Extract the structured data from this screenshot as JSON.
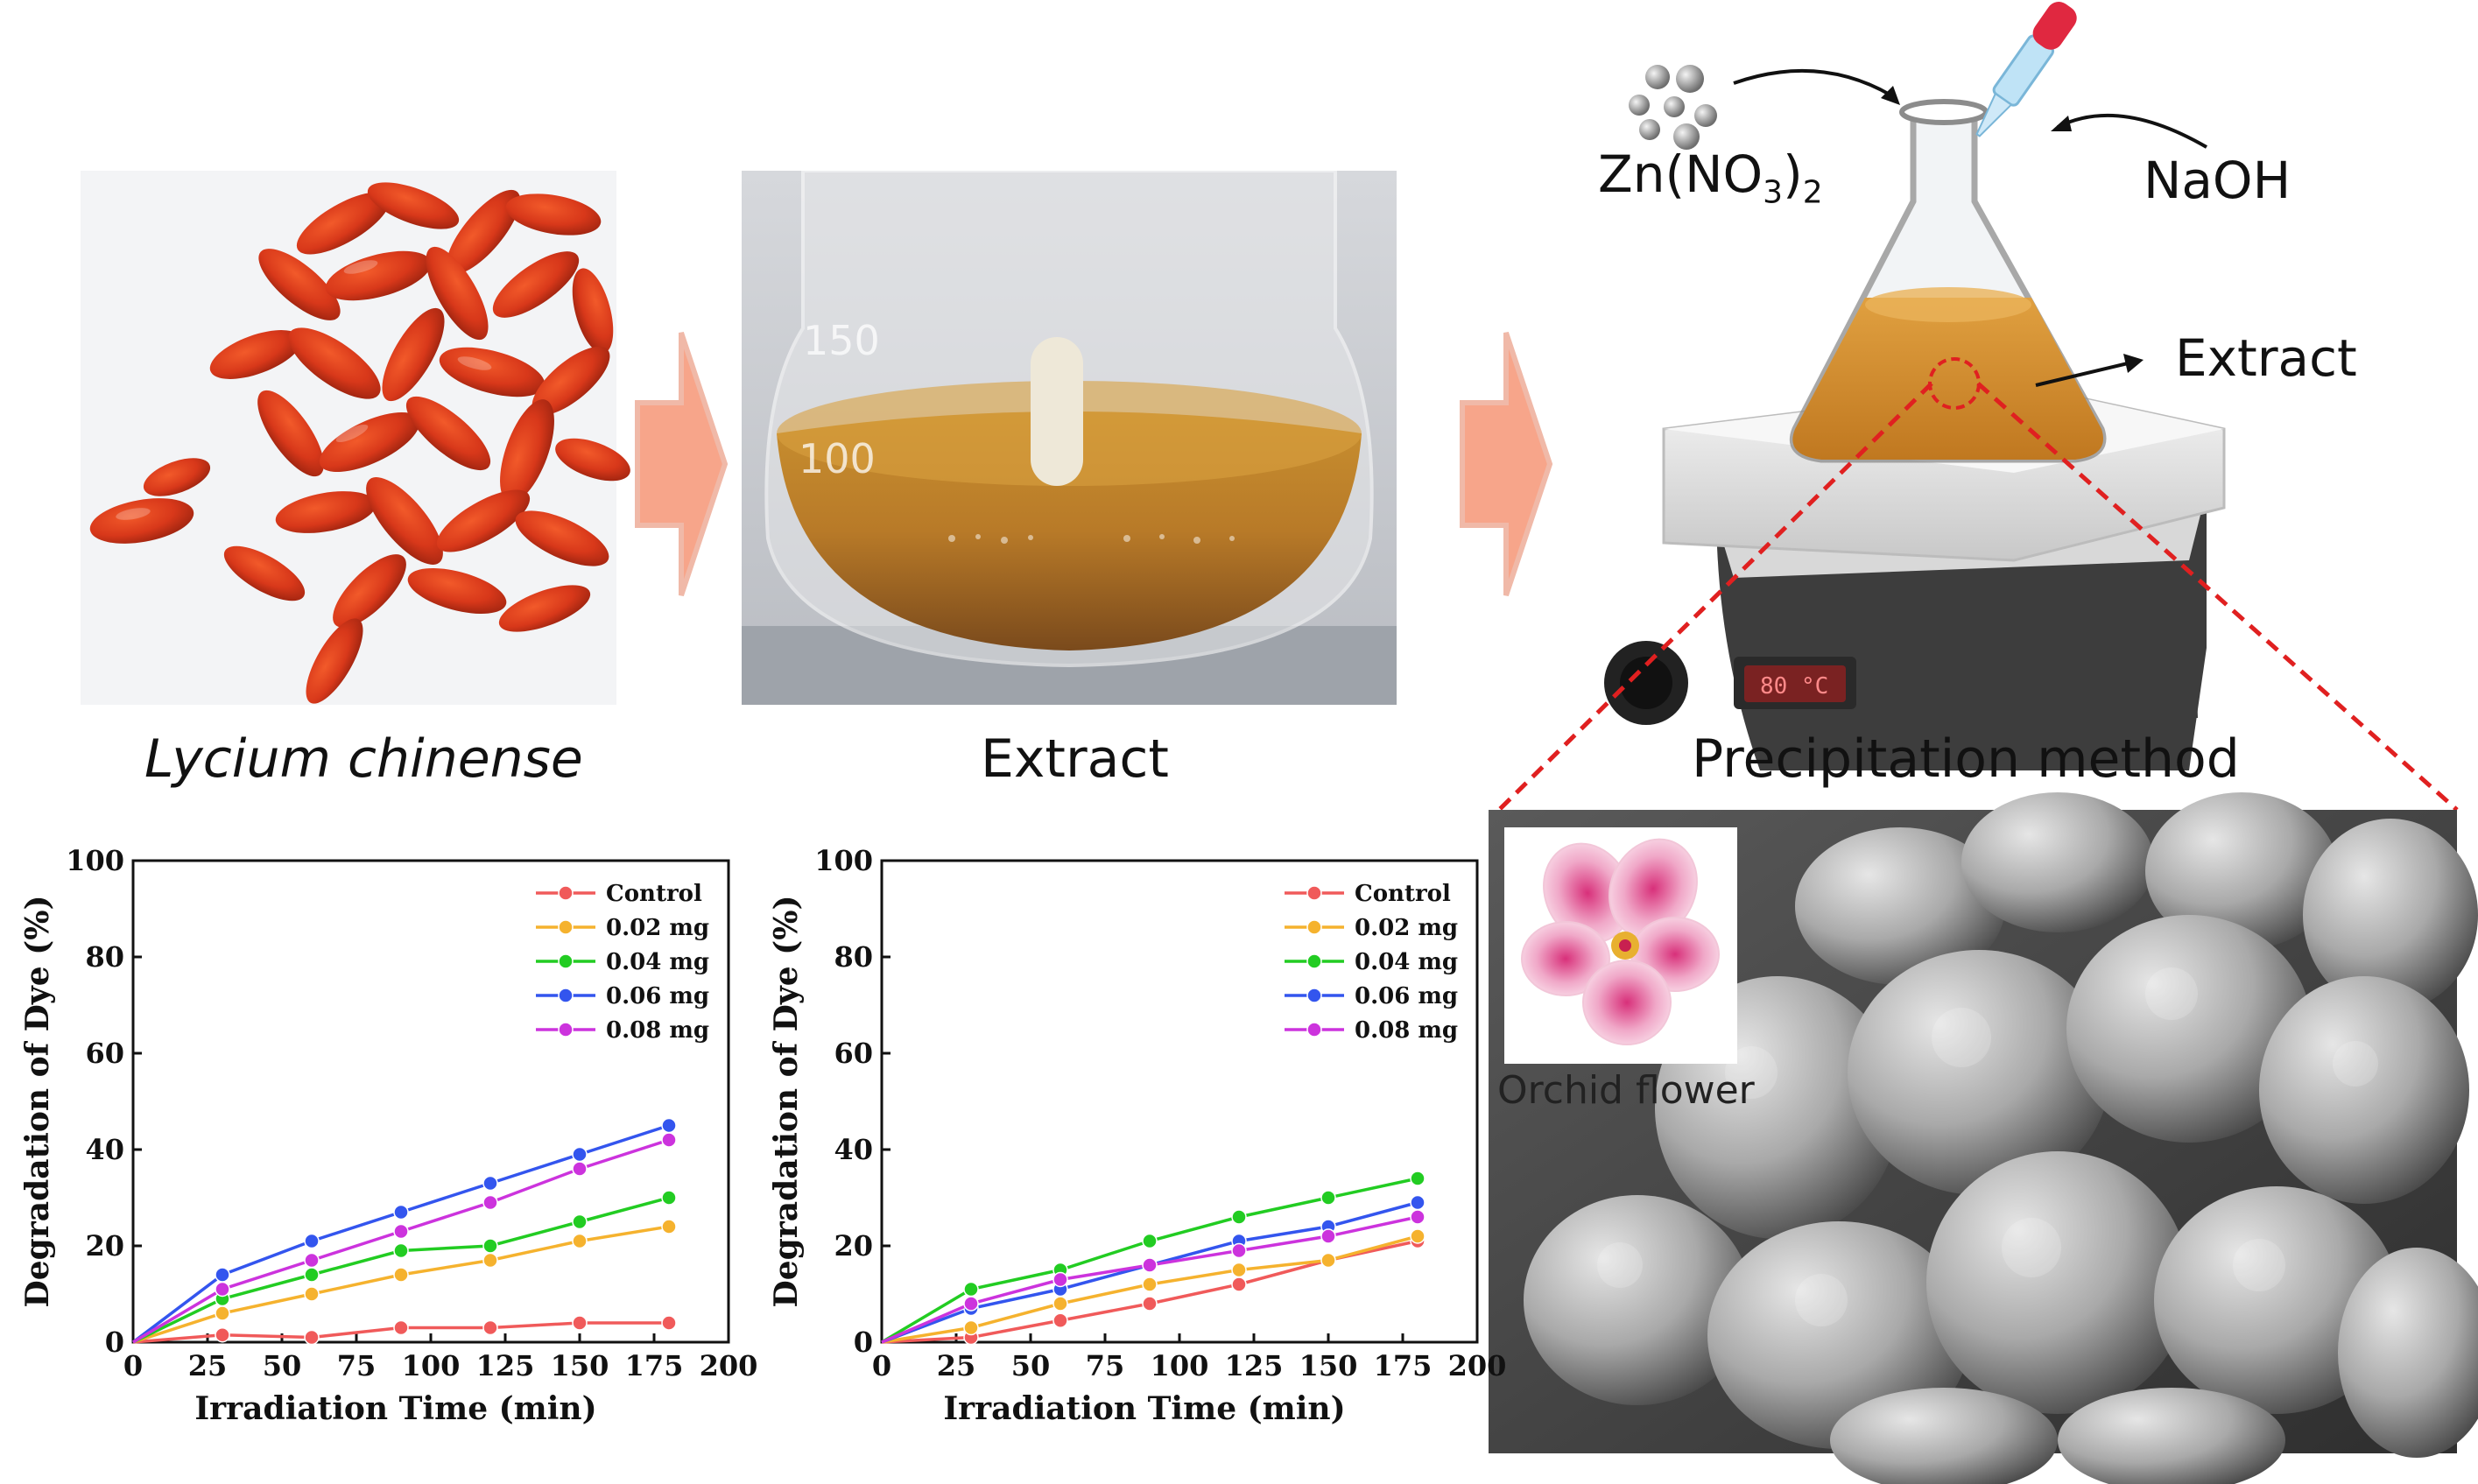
{
  "labels": {
    "goji": "Lycium chinense",
    "extract_photo": "Extract",
    "method": "Precipitation method",
    "zinc": "Zn(NO",
    "zinc_sub3": "3",
    "zinc_close": ")",
    "zinc_sub2": "2",
    "naoh": "NaOH",
    "flask_extract": "Extract",
    "orchid": "Orchid flower",
    "beaker_150": "150",
    "beaker_100": "100",
    "hotplate_display": "80 °C"
  },
  "colors": {
    "arrow": "#f7a58a",
    "control": "#f05a5a",
    "s002": "#f5b22e",
    "s004": "#22cc22",
    "s006": "#3355ee",
    "s008": "#cc33dd",
    "zoom_line": "#e02020"
  },
  "chart_data": [
    {
      "type": "line",
      "xlabel": "Irradiation Time (min)",
      "ylabel": "Degradation of Dye (%)",
      "xlim": [
        0,
        200
      ],
      "ylim": [
        0,
        100
      ],
      "xticks": [
        "0",
        "25",
        "50",
        "75",
        "100",
        "125",
        "150",
        "175",
        "200"
      ],
      "yticks": [
        "0",
        "20",
        "40",
        "60",
        "80",
        "100"
      ],
      "legend": "top-right",
      "x": [
        0,
        30,
        60,
        90,
        120,
        150,
        180
      ],
      "series": [
        {
          "name": "Control",
          "values": [
            0,
            1.5,
            1,
            3,
            3,
            4,
            4
          ]
        },
        {
          "name": "0.02 mg",
          "values": [
            0,
            6,
            10,
            14,
            17,
            21,
            24
          ]
        },
        {
          "name": "0.04 mg",
          "values": [
            0,
            9,
            14,
            19,
            20,
            25,
            30
          ]
        },
        {
          "name": "0.06 mg",
          "values": [
            0,
            14,
            21,
            27,
            33,
            39,
            45
          ]
        },
        {
          "name": "0.08 mg",
          "values": [
            0,
            11,
            17,
            23,
            29,
            36,
            42
          ]
        }
      ]
    },
    {
      "type": "line",
      "xlabel": "Irradiation Time (min)",
      "ylabel": "Degradation of Dye (%)",
      "xlim": [
        0,
        200
      ],
      "ylim": [
        0,
        100
      ],
      "xticks": [
        "0",
        "25",
        "50",
        "75",
        "100",
        "125",
        "150",
        "175",
        "200"
      ],
      "yticks": [
        "0",
        "20",
        "40",
        "60",
        "80",
        "100"
      ],
      "legend": "top-right",
      "x": [
        0,
        30,
        60,
        90,
        120,
        150,
        180
      ],
      "series": [
        {
          "name": "Control",
          "values": [
            0,
            1,
            4.5,
            8,
            12,
            17,
            21
          ]
        },
        {
          "name": "0.02 mg",
          "values": [
            0,
            3,
            8,
            12,
            15,
            17,
            22
          ]
        },
        {
          "name": "0.04 mg",
          "values": [
            0,
            11,
            15,
            21,
            26,
            30,
            34
          ]
        },
        {
          "name": "0.06 mg",
          "values": [
            0,
            7,
            11,
            16,
            21,
            24,
            29
          ]
        },
        {
          "name": "0.08 mg",
          "values": [
            0,
            8,
            13,
            16,
            19,
            22,
            26
          ]
        }
      ]
    }
  ]
}
